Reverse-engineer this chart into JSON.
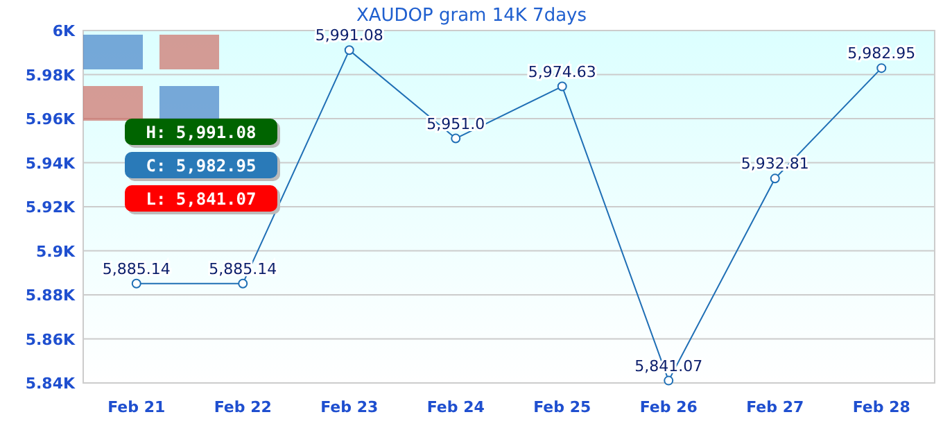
{
  "chart_data": {
    "type": "line",
    "title": "XAUDOP gram 14K 7days",
    "categories": [
      "Feb 21",
      "Feb 22",
      "Feb 23",
      "Feb 24",
      "Feb 25",
      "Feb 26",
      "Feb 27",
      "Feb 28"
    ],
    "series": [
      {
        "color": "#1f6fb5",
        "values": [
          5885.14,
          5885.14,
          5991.08,
          5951.0,
          5974.63,
          5841.07,
          5932.81,
          5982.95
        ],
        "value_labels": [
          "5,885.14",
          "5,885.14",
          "5,991.08",
          "5,951.0",
          "5,974.63",
          "5,841.07",
          "5,932.81",
          "5,982.95"
        ]
      }
    ],
    "ylim": [
      5840,
      6000
    ],
    "yticks": [
      {
        "value": 5840,
        "label": "5.84K"
      },
      {
        "value": 5860,
        "label": "5.86K"
      },
      {
        "value": 5880,
        "label": "5.88K"
      },
      {
        "value": 5900,
        "label": "5.9K"
      },
      {
        "value": 5920,
        "label": "5.92K"
      },
      {
        "value": 5940,
        "label": "5.94K"
      },
      {
        "value": 5960,
        "label": "5.96K"
      },
      {
        "value": 5980,
        "label": "5.98K"
      },
      {
        "value": 6000,
        "label": "6K"
      }
    ],
    "grid": "y",
    "marker": "circle",
    "line_style": "solid",
    "annotations": [
      "H: 5,991.08",
      "C: 5,982.95",
      "L: 5,841.07"
    ]
  }
}
